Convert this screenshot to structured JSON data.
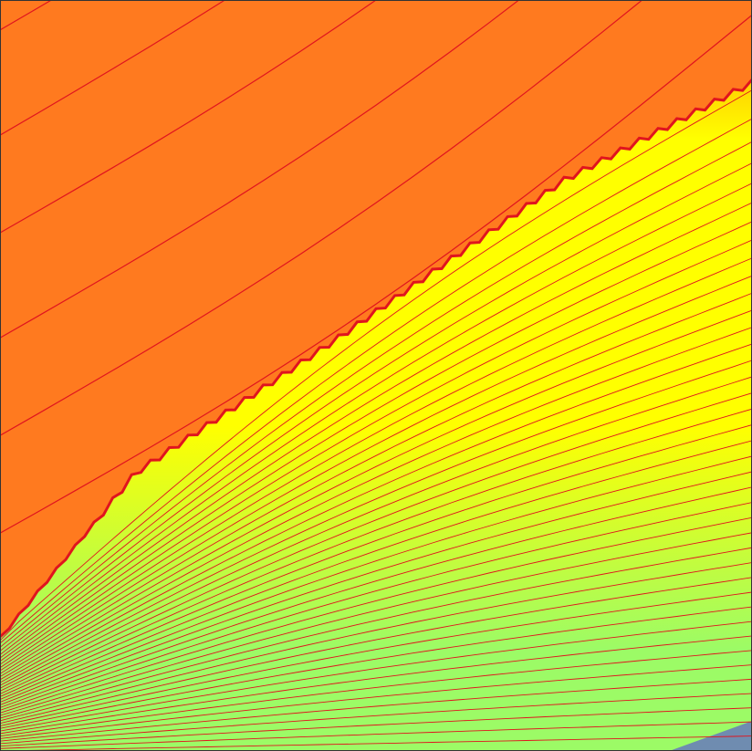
{
  "chart_data": {
    "type": "contour",
    "title": "",
    "xlabel": "",
    "ylabel": "",
    "xlim": [
      0,
      1
    ],
    "ylim": [
      0,
      1
    ],
    "grid": false,
    "legend": "none",
    "fill_colors": {
      "upper_region": "#ff7a1f",
      "transition": "#ffcc00",
      "mid_region": "#ffff00",
      "lower_region": "#9cfb66",
      "corner_patch": "#6f8cb0"
    },
    "line_color": "#e0141e",
    "shock_front": {
      "description_points": [
        [
          0.0,
          0.15
        ],
        [
          0.18,
          0.37
        ],
        [
          0.45,
          0.55
        ],
        [
          0.75,
          0.76
        ],
        [
          1.0,
          0.89
        ]
      ]
    },
    "upper_contours": [
      {
        "x": [
          0.0,
          1.0
        ],
        "y": [
          1.24,
          1.95
        ]
      },
      {
        "x": [
          0.0,
          1.0
        ],
        "y": [
          1.1,
          1.81
        ]
      },
      {
        "x": [
          0.0,
          1.0
        ],
        "y": [
          0.96,
          1.67
        ]
      },
      {
        "x": [
          0.0,
          1.0
        ],
        "y": [
          0.82,
          1.53
        ]
      },
      {
        "x": [
          0.0,
          1.0
        ],
        "y": [
          0.69,
          1.39
        ]
      },
      {
        "x": [
          0.0,
          1.0
        ],
        "y": [
          0.55,
          1.25
        ]
      },
      {
        "x": [
          0.0,
          1.0
        ],
        "y": [
          0.42,
          1.12
        ]
      },
      {
        "x": [
          0.0,
          1.0
        ],
        "y": [
          0.29,
          0.98
        ]
      }
    ],
    "lower_contours_count": 40,
    "lower_fan": {
      "left_y_range": [
        0.15,
        0.0
      ],
      "right_y_range": [
        0.88,
        0.02
      ]
    }
  }
}
